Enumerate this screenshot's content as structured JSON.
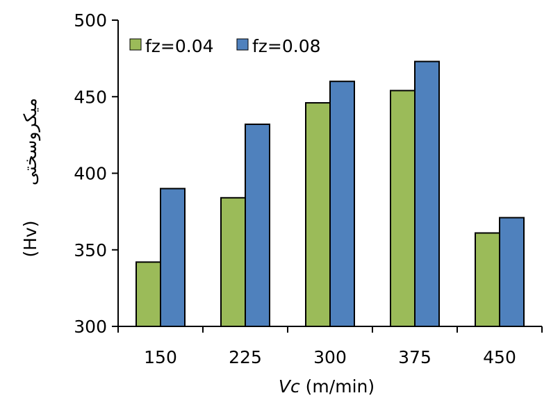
{
  "chart_data": {
    "type": "bar",
    "categories": [
      "150",
      "225",
      "300",
      "375",
      "450"
    ],
    "series": [
      {
        "name": "fz=0.04",
        "color": "#9BBB59",
        "values": [
          342,
          384,
          446,
          454,
          361
        ]
      },
      {
        "name": "fz=0.08",
        "color": "#4F81BD",
        "values": [
          390,
          432,
          460,
          473,
          371
        ]
      }
    ],
    "ylim": [
      300,
      500
    ],
    "yticks": [
      "300",
      "350",
      "400",
      "450",
      "500"
    ],
    "xlabel_italic": "Vc",
    "xlabel_rest": " (m/min)",
    "ylabel_fa": "میکروسختی",
    "ylabel_unit": "(Hv)",
    "legend_position": "top-left",
    "grid": false
  }
}
